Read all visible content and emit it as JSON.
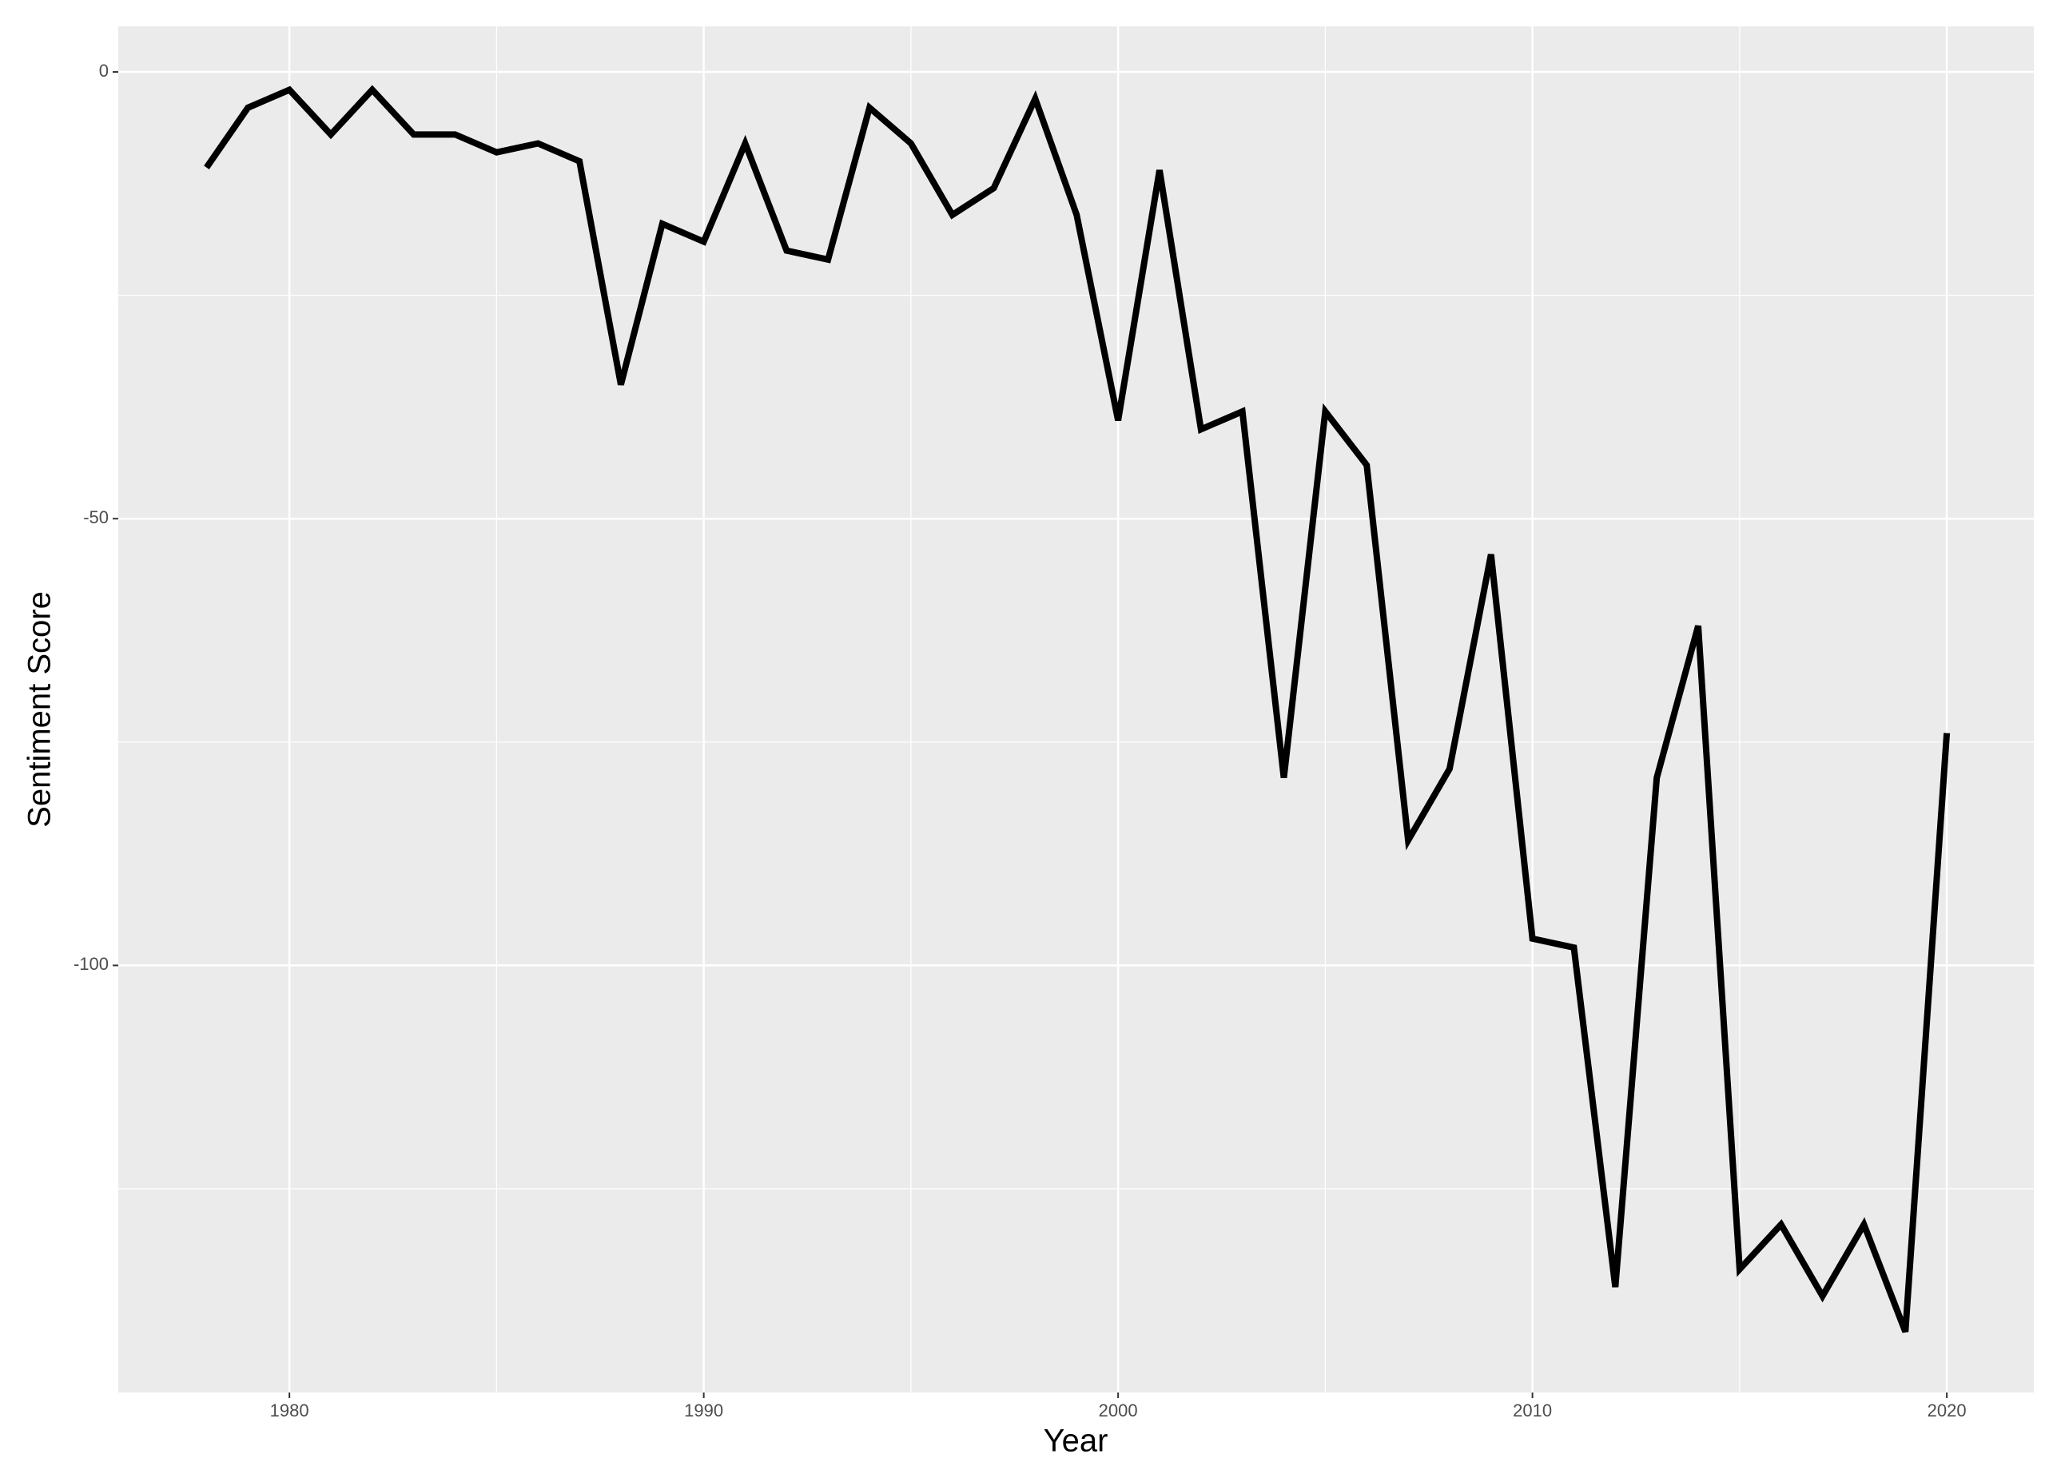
{
  "chart_data": {
    "type": "line",
    "x_label": "Year",
    "y_label": "Sentiment Score",
    "x": [
      1978,
      1979,
      1980,
      1981,
      1982,
      1983,
      1984,
      1985,
      1986,
      1987,
      1988,
      1989,
      1990,
      1991,
      1992,
      1993,
      1994,
      1995,
      1996,
      1997,
      1998,
      1999,
      2000,
      2001,
      2002,
      2003,
      2004,
      2005,
      2006,
      2007,
      2008,
      2009,
      2010,
      2011,
      2012,
      2013,
      2014,
      2015,
      2016,
      2017,
      2018,
      2019,
      2020
    ],
    "series": [
      {
        "color": "#000000",
        "values": [
          -10.7,
          -4,
          -2,
          -7,
          -2,
          -7,
          -7,
          -9,
          -8,
          -10,
          -35,
          -17,
          -19,
          -8,
          -20,
          -21,
          -4,
          -8,
          -16,
          -13,
          -3,
          -16,
          -39,
          -11,
          -40,
          -38,
          -79,
          -38,
          -44,
          -86,
          -78,
          -54,
          -97,
          -98,
          -136,
          -79,
          -62,
          -134,
          -129,
          -137,
          -129,
          -141,
          -74
        ]
      }
    ],
    "xlim": [
      1975.87,
      2022.1
    ],
    "xticks": [
      1980,
      1990,
      2000,
      2010,
      2020
    ],
    "ylim": [
      -147.8,
      5.1
    ],
    "yticks": [
      -100,
      -50,
      0
    ],
    "grid": true
  }
}
